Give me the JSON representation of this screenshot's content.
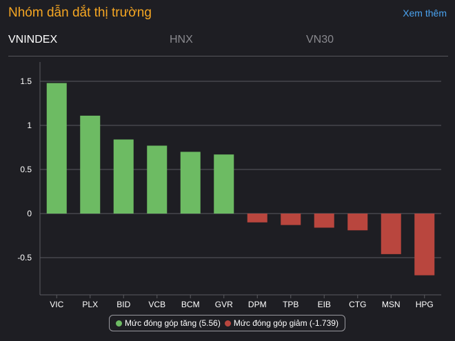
{
  "header": {
    "title": "Nhóm dẫn dắt thị trường",
    "see_more": "Xem thêm"
  },
  "tabs": [
    {
      "label": "VNINDEX",
      "active": true
    },
    {
      "label": "HNX",
      "active": false
    },
    {
      "label": "VN30",
      "active": false
    }
  ],
  "colors": {
    "positive": "#6dbb63",
    "negative": "#b9463e",
    "accent": "#f5a623",
    "link": "#4aa3f0"
  },
  "chart_data": {
    "type": "bar",
    "categories": [
      "VIC",
      "PLX",
      "BID",
      "VCB",
      "BCM",
      "GVR",
      "DPM",
      "TPB",
      "EIB",
      "CTG",
      "MSN",
      "HPG"
    ],
    "values": [
      1.48,
      1.11,
      0.84,
      0.77,
      0.7,
      0.67,
      -0.1,
      -0.13,
      -0.16,
      -0.19,
      -0.46,
      -0.7
    ],
    "yticks": [
      "1.5",
      "1",
      "0.5",
      "0",
      "-0.5"
    ],
    "ylim": [
      -0.9,
      1.7
    ],
    "grid": true,
    "legend_position": "bottom",
    "legend": [
      {
        "label": "Mức đóng góp tăng (5.56)",
        "color": "#6dbb63"
      },
      {
        "label": "Mức đóng góp giảm (-1.739)",
        "color": "#b9463e"
      }
    ]
  }
}
